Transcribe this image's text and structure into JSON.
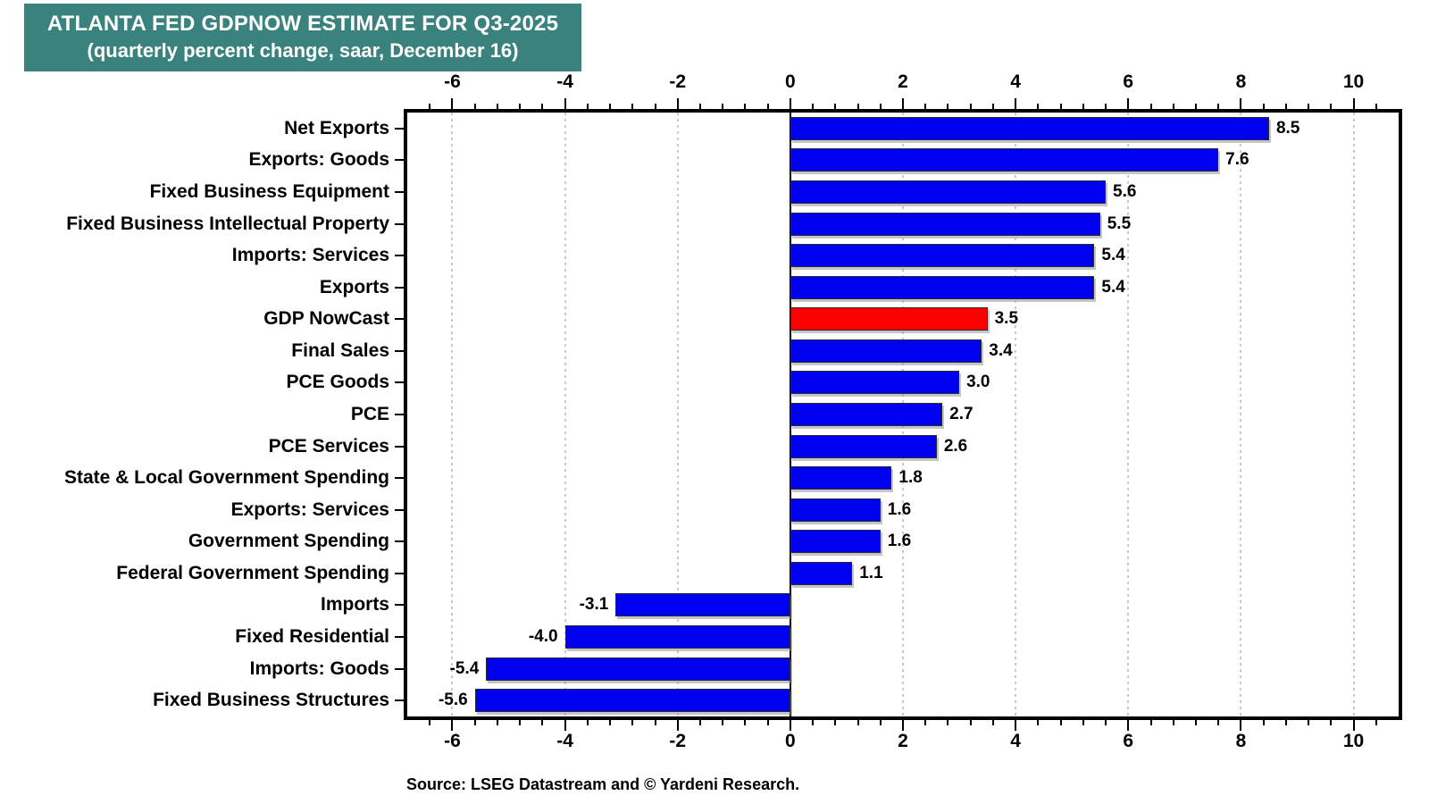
{
  "title": {
    "line1": "ATLANTA FED GDPNOW ESTIMATE FOR Q3-2025",
    "line2": "(quarterly percent change, saar, December 16)"
  },
  "source": "Source: LSEG Datastream and © Yardeni Research.",
  "colors": {
    "title_bg": "#3A827E",
    "title_text": "#FFFFFF",
    "bar": "#0000F0",
    "highlight": "#FA0000",
    "grid": "#C9C9C9",
    "axis": "#000000"
  },
  "chart_data": {
    "type": "bar",
    "orientation": "horizontal",
    "title": "ATLANTA FED GDPNOW ESTIMATE FOR Q3-2025",
    "subtitle": "(quarterly percent change, saar, December 16)",
    "categories": [
      "Net Exports",
      "Exports: Goods",
      "Fixed Business Equipment",
      "Fixed Business Intellectual Property",
      "Imports: Services",
      "Exports",
      "GDP NowCast",
      "Final Sales",
      "PCE Goods",
      "PCE",
      "PCE Services",
      "State & Local Government Spending",
      "Exports: Services",
      "Government Spending",
      "Federal Government Spending",
      "Imports",
      "Fixed Residential",
      "Imports: Goods",
      "Fixed Business Structures"
    ],
    "values": [
      8.5,
      7.6,
      5.6,
      5.5,
      5.4,
      5.4,
      3.5,
      3.4,
      3.0,
      2.7,
      2.6,
      1.8,
      1.6,
      1.6,
      1.1,
      -3.1,
      -4.0,
      -5.4,
      -5.6
    ],
    "highlight_index": 6,
    "highlight_category": "GDP NowCast",
    "xlim": [
      -6.8,
      10.8
    ],
    "xticks": [
      -6,
      -4,
      -2,
      0,
      2,
      4,
      6,
      8,
      10
    ],
    "minor_tick_step": 0.4,
    "grid": "vertical dotted at major ticks, solid line at zero",
    "legend": "none",
    "value_labels": "at bar ends, one decimal",
    "xlabel": "",
    "ylabel": ""
  }
}
